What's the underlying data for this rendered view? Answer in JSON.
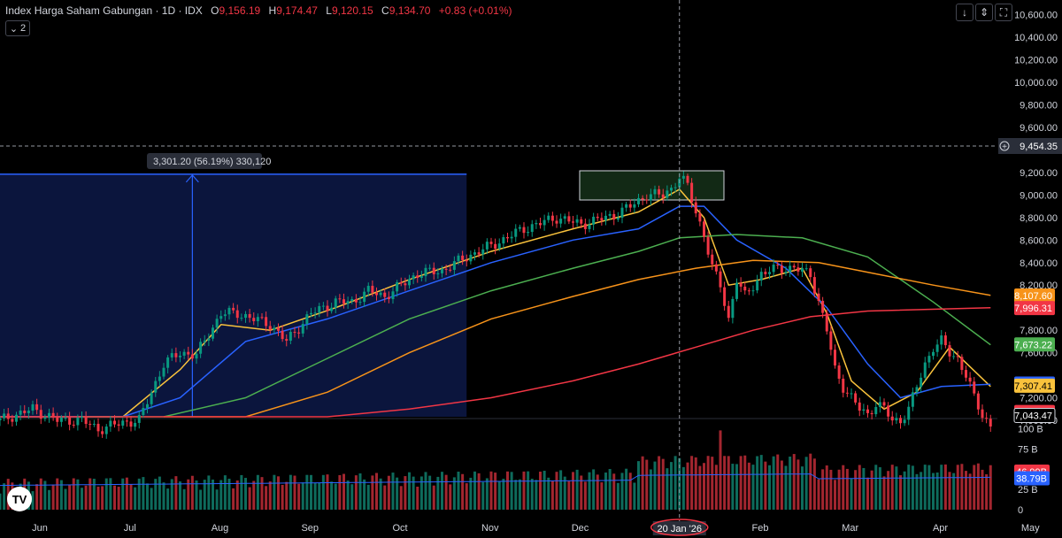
{
  "legend": {
    "title": "Index Harga Saham Gabungan · 1D · IDX",
    "o_label": "O",
    "o_value": "9,156.19",
    "h_label": "H",
    "h_value": "9,174.47",
    "l_label": "L",
    "l_value": "9,120.15",
    "c_label": "C",
    "c_value": "9,134.70",
    "change": "+0.83 (+0.01%)",
    "collapse_count": "2"
  },
  "toolbar": {
    "down_icon": "arrow-down-icon",
    "updown_icon": "arrows-updown-icon",
    "fullscreen_icon": "fullscreen-icon"
  },
  "measure_label": "3,301.20 (56.19%) 330,120",
  "crosshair": {
    "price_label": "9,454.35",
    "date_label": "20 Jan '26"
  },
  "logo_text": "TV",
  "chart_data": {
    "type": "candlestick",
    "price_axis": {
      "ylim": [
        7000,
        10700
      ],
      "ticks": [
        "10,600.00",
        "10,400.00",
        "10,200.00",
        "10,000.00",
        "9,800.00",
        "9,600.00",
        "9,200.00",
        "9,000.00",
        "8,800.00",
        "8,600.00",
        "8,400.00",
        "8,200.00",
        "7,800.00",
        "7,600.00",
        "7,200.00",
        "7,000.00"
      ],
      "tick_values": [
        10600,
        10400,
        10200,
        10000,
        9800,
        9600,
        9200,
        9000,
        8800,
        8600,
        8400,
        8200,
        7800,
        7600,
        7200,
        7000
      ]
    },
    "time_axis": {
      "labels": [
        "Jun",
        "Jul",
        "Aug",
        "Sep",
        "Oct",
        "Nov",
        "Dec",
        "2026",
        "Feb",
        "Mar",
        "Apr",
        "May",
        "Jun"
      ],
      "month_index": [
        0,
        22,
        44,
        66,
        88,
        110,
        132,
        154,
        176,
        198,
        220,
        242,
        264
      ]
    },
    "volume_axis": {
      "ticks": [
        "100 B",
        "75 B",
        "25 B",
        "0"
      ],
      "tick_values": [
        100,
        75,
        25,
        0
      ],
      "ylim": [
        0,
        105
      ]
    },
    "last_values": [
      {
        "label": "8,107.60",
        "value": 8107.6,
        "color": "#f7931a"
      },
      {
        "label": "7,996.31",
        "value": 7996.31,
        "color": "#f23645"
      },
      {
        "label": "7,673.22",
        "value": 7673.22,
        "color": "#4caf50"
      },
      {
        "label": "7,326.39",
        "value": 7326.39,
        "color": "#2962ff"
      },
      {
        "label": "7,307.41",
        "value": 7307.41,
        "color": "#f9c23c"
      },
      {
        "label": "7,073.29",
        "value": 7073.29,
        "color": "#f23645"
      },
      {
        "label": "7,043.47",
        "value": 7043.47,
        "color": "#000000"
      }
    ],
    "volume_last": [
      {
        "label": "46.99B",
        "value": 46.99,
        "color": "#f23645"
      },
      {
        "label": "38.79B",
        "value": 38.79,
        "color": "#2962ff"
      }
    ],
    "close_path": [
      [
        0,
        7000
      ],
      [
        8,
        7100
      ],
      [
        14,
        7000
      ],
      [
        20,
        7000
      ],
      [
        24,
        6920
      ],
      [
        30,
        6980
      ],
      [
        34,
        7000
      ],
      [
        40,
        7500
      ],
      [
        44,
        7600
      ],
      [
        48,
        7580
      ],
      [
        54,
        7950
      ],
      [
        58,
        7950
      ],
      [
        62,
        7900
      ],
      [
        66,
        7850
      ],
      [
        70,
        7700
      ],
      [
        76,
        7950
      ],
      [
        82,
        8050
      ],
      [
        86,
        8050
      ],
      [
        90,
        8150
      ],
      [
        94,
        8100
      ],
      [
        98,
        8200
      ],
      [
        102,
        8300
      ],
      [
        108,
        8330
      ],
      [
        114,
        8450
      ],
      [
        120,
        8550
      ],
      [
        128,
        8700
      ],
      [
        132,
        8750
      ],
      [
        136,
        8800
      ],
      [
        142,
        8740
      ],
      [
        146,
        8780
      ],
      [
        150,
        8820
      ],
      [
        154,
        8900
      ],
      [
        158,
        9000
      ],
      [
        162,
        9000
      ],
      [
        164,
        9060
      ],
      [
        166,
        9160
      ],
      [
        168,
        9080
      ],
      [
        170,
        8850
      ],
      [
        172,
        8650
      ],
      [
        174,
        8350
      ],
      [
        176,
        8200
      ],
      [
        178,
        7900
      ],
      [
        180,
        8250
      ],
      [
        182,
        8100
      ],
      [
        186,
        8300
      ],
      [
        190,
        8350
      ],
      [
        194,
        8350
      ],
      [
        198,
        8300
      ],
      [
        200,
        8050
      ],
      [
        202,
        7800
      ],
      [
        204,
        7450
      ],
      [
        206,
        7300
      ],
      [
        208,
        7200
      ],
      [
        210,
        7100
      ],
      [
        212,
        7050
      ],
      [
        214,
        7150
      ],
      [
        216,
        7100
      ],
      [
        218,
        7000
      ],
      [
        220,
        7000
      ],
      [
        222,
        7100
      ],
      [
        224,
        7300
      ],
      [
        226,
        7500
      ],
      [
        228,
        7650
      ],
      [
        230,
        7700
      ],
      [
        232,
        7600
      ],
      [
        234,
        7550
      ],
      [
        236,
        7400
      ],
      [
        238,
        7200
      ],
      [
        240,
        7050
      ],
      [
        242,
        6950
      ]
    ],
    "ma_lines": [
      {
        "name": "MA fast",
        "color": "#f9c23c",
        "points": [
          [
            0,
            6990
          ],
          [
            30,
            6950
          ],
          [
            44,
            7450
          ],
          [
            54,
            7850
          ],
          [
            66,
            7800
          ],
          [
            82,
            8000
          ],
          [
            100,
            8250
          ],
          [
            120,
            8500
          ],
          [
            140,
            8700
          ],
          [
            156,
            8850
          ],
          [
            166,
            9050
          ],
          [
            172,
            8800
          ],
          [
            178,
            8200
          ],
          [
            186,
            8250
          ],
          [
            196,
            8350
          ],
          [
            202,
            7950
          ],
          [
            208,
            7350
          ],
          [
            216,
            7100
          ],
          [
            224,
            7250
          ],
          [
            232,
            7650
          ],
          [
            242,
            7300
          ]
        ]
      },
      {
        "name": "MA mid",
        "color": "#2962ff",
        "points": [
          [
            0,
            6950
          ],
          [
            30,
            6900
          ],
          [
            44,
            7200
          ],
          [
            60,
            7700
          ],
          [
            80,
            7900
          ],
          [
            100,
            8150
          ],
          [
            120,
            8400
          ],
          [
            140,
            8600
          ],
          [
            156,
            8700
          ],
          [
            166,
            8900
          ],
          [
            172,
            8900
          ],
          [
            180,
            8600
          ],
          [
            192,
            8350
          ],
          [
            202,
            8000
          ],
          [
            212,
            7500
          ],
          [
            220,
            7200
          ],
          [
            230,
            7300
          ],
          [
            242,
            7320
          ]
        ]
      },
      {
        "name": "MA slow",
        "color": "#4caf50",
        "points": [
          [
            20,
            6700
          ],
          [
            40,
            6900
          ],
          [
            60,
            7200
          ],
          [
            80,
            7550
          ],
          [
            100,
            7900
          ],
          [
            120,
            8150
          ],
          [
            140,
            8350
          ],
          [
            156,
            8500
          ],
          [
            166,
            8620
          ],
          [
            180,
            8650
          ],
          [
            196,
            8620
          ],
          [
            212,
            8450
          ],
          [
            228,
            8050
          ],
          [
            242,
            7670
          ]
        ]
      },
      {
        "name": "MA 200",
        "color": "#f7931a",
        "points": [
          [
            40,
            6600
          ],
          [
            60,
            6900
          ],
          [
            80,
            7250
          ],
          [
            100,
            7600
          ],
          [
            120,
            7900
          ],
          [
            140,
            8100
          ],
          [
            156,
            8250
          ],
          [
            170,
            8350
          ],
          [
            184,
            8420
          ],
          [
            200,
            8400
          ],
          [
            214,
            8300
          ],
          [
            228,
            8200
          ],
          [
            242,
            8110
          ]
        ]
      },
      {
        "name": "MA long",
        "color": "#f23645",
        "points": [
          [
            0,
            7000
          ],
          [
            20,
            6980
          ],
          [
            40,
            6950
          ],
          [
            60,
            6960
          ],
          [
            80,
            7000
          ],
          [
            100,
            7100
          ],
          [
            120,
            7200
          ],
          [
            140,
            7350
          ],
          [
            156,
            7500
          ],
          [
            170,
            7650
          ],
          [
            184,
            7800
          ],
          [
            198,
            7920
          ],
          [
            212,
            7970
          ],
          [
            242,
            8000
          ]
        ]
      }
    ]
  }
}
